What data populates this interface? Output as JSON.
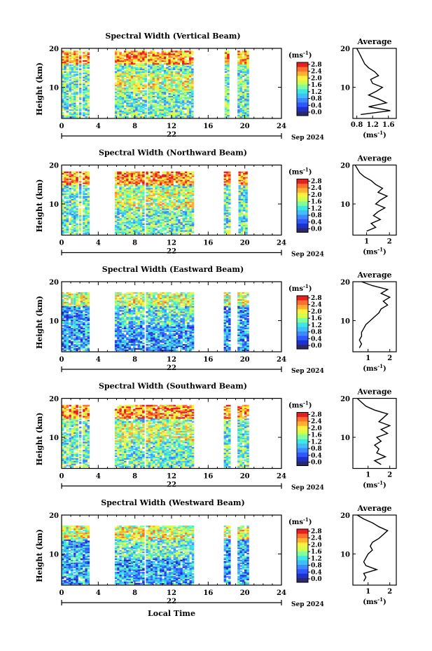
{
  "figure": {
    "xlabel": "Local Time",
    "date_suffix": "Sep 2024"
  },
  "colorbar": {
    "unit": "(ms",
    "unit_exp": "-1",
    "unit_close": ")",
    "ticks": [
      "0.0",
      "0.4",
      "0.8",
      "1.2",
      "1.6",
      "2.0",
      "2.4",
      "2.8"
    ],
    "colors": [
      "#2a2a6a",
      "#1f2fd0",
      "#2f59ff",
      "#3f89ff",
      "#3fbfff",
      "#3fe7df",
      "#7fff9f",
      "#cfff4f",
      "#fff03f",
      "#ffb02f",
      "#ff6f2f",
      "#e62020"
    ]
  },
  "chart_data": [
    {
      "type": "heatmap",
      "title": "Spectral Width (Vertical Beam)",
      "ylabel": "Height (km)",
      "xlim": [
        0,
        24
      ],
      "ylim": [
        2,
        20
      ],
      "xticks": [
        0,
        4,
        8,
        12,
        16,
        20,
        24
      ],
      "yticks": [
        10,
        20
      ],
      "day_label": "22",
      "data_intervals": [
        [
          0.0,
          0.6
        ],
        [
          0.8,
          1.6
        ],
        [
          1.9,
          2.1
        ],
        [
          2.3,
          3.0
        ],
        [
          5.8,
          9.2
        ],
        [
          9.4,
          14.3
        ],
        [
          17.8,
          18.2
        ],
        [
          19.2,
          20.3
        ]
      ],
      "top_km": 19.5,
      "mean_intensity": 0.45,
      "average_profile": {
        "title": "Average",
        "xlabel": "(ms",
        "xlabel_exp": "-1",
        "xlabel_close": ")",
        "xlim": [
          0.7,
          1.8
        ],
        "xticks": [
          "0.8",
          "1.2",
          "1.6"
        ],
        "xtick_values": [
          0.8,
          1.2,
          1.6
        ],
        "ylim": [
          2,
          20
        ],
        "yticks": [
          10,
          20
        ],
        "height_km": [
          3,
          4,
          5,
          6,
          7,
          8,
          9,
          10,
          11,
          12,
          13,
          14,
          15,
          16,
          17,
          18,
          19,
          20
        ],
        "width_ms": [
          0.9,
          1.65,
          1.1,
          1.55,
          1.35,
          1.1,
          1.3,
          1.45,
          1.2,
          1.15,
          1.35,
          1.25,
          1.1,
          1.0,
          0.95,
          0.9,
          0.85,
          0.8
        ]
      }
    },
    {
      "type": "heatmap",
      "title": "Spectral Width (Northward Beam)",
      "ylabel": "Height (km)",
      "xlim": [
        0,
        24
      ],
      "ylim": [
        2,
        20
      ],
      "xticks": [
        0,
        4,
        8,
        12,
        16,
        20,
        24
      ],
      "yticks": [
        10,
        20
      ],
      "day_label": "22",
      "data_intervals": [
        [
          0.0,
          0.6
        ],
        [
          0.8,
          1.6
        ],
        [
          1.9,
          2.1
        ],
        [
          2.3,
          3.0
        ],
        [
          5.8,
          9.0
        ],
        [
          9.2,
          14.3
        ],
        [
          17.7,
          18.3
        ],
        [
          19.3,
          20.3
        ]
      ],
      "top_km": 18.5,
      "mean_intensity": 0.45,
      "average_profile": {
        "title": "Average",
        "xlabel": "(ms",
        "xlabel_exp": "-1",
        "xlabel_close": ")",
        "xlim": [
          0.4,
          2.3
        ],
        "xticks": [
          "1",
          "2"
        ],
        "xtick_values": [
          1,
          2
        ],
        "ylim": [
          2,
          20
        ],
        "yticks": [
          10,
          20
        ],
        "height_km": [
          3,
          4,
          5,
          6,
          7,
          8,
          9,
          10,
          11,
          12,
          13,
          14,
          15,
          16,
          17,
          18,
          19,
          20
        ],
        "width_ms": [
          1.0,
          1.4,
          1.2,
          1.6,
          1.3,
          1.5,
          1.8,
          1.4,
          1.6,
          1.9,
          1.5,
          1.7,
          1.4,
          1.2,
          0.9,
          0.7,
          0.6,
          0.5
        ]
      }
    },
    {
      "type": "heatmap",
      "title": "Spectral Width (Eastward Beam)",
      "ylabel": "Height (km)",
      "xlim": [
        0,
        24
      ],
      "ylim": [
        2,
        20
      ],
      "xticks": [
        0,
        4,
        8,
        12,
        16,
        20,
        24
      ],
      "yticks": [
        10,
        20
      ],
      "day_label": "22",
      "data_intervals": [
        [
          0.0,
          1.1
        ],
        [
          1.3,
          2.1
        ],
        [
          2.3,
          3.0
        ],
        [
          5.8,
          9.0
        ],
        [
          9.2,
          14.3
        ],
        [
          17.7,
          18.4
        ],
        [
          19.2,
          20.3
        ]
      ],
      "top_km": 17.5,
      "mean_intensity": 0.25,
      "average_profile": {
        "title": "Average",
        "xlabel": "(ms",
        "xlabel_exp": "-1",
        "xlabel_close": ")",
        "xlim": [
          0.3,
          2.3
        ],
        "xticks": [
          "1",
          "2"
        ],
        "xtick_values": [
          1,
          2
        ],
        "ylim": [
          2,
          20
        ],
        "yticks": [
          10,
          20
        ],
        "height_km": [
          3,
          4,
          5,
          6,
          7,
          8,
          9,
          10,
          11,
          12,
          13,
          14,
          15,
          16,
          17,
          18,
          19,
          20
        ],
        "width_ms": [
          0.6,
          0.7,
          0.6,
          0.7,
          0.7,
          0.8,
          0.9,
          1.1,
          1.3,
          1.5,
          1.6,
          1.9,
          1.7,
          2.0,
          1.6,
          1.9,
          1.2,
          0.7
        ]
      }
    },
    {
      "type": "heatmap",
      "title": "Spectral Width (Southward Beam)",
      "ylabel": "Height (km)",
      "xlim": [
        0,
        24
      ],
      "ylim": [
        2,
        20
      ],
      "xticks": [
        0,
        4,
        8,
        12,
        16,
        20,
        24
      ],
      "yticks": [
        10,
        20
      ],
      "day_label": "22",
      "data_intervals": [
        [
          0.0,
          0.6
        ],
        [
          0.8,
          1.6
        ],
        [
          1.9,
          2.1
        ],
        [
          2.3,
          3.0
        ],
        [
          5.8,
          9.0
        ],
        [
          9.2,
          14.3
        ],
        [
          17.7,
          18.3
        ],
        [
          19.2,
          20.3
        ]
      ],
      "top_km": 18.5,
      "mean_intensity": 0.45,
      "average_profile": {
        "title": "Average",
        "xlabel": "(ms",
        "xlabel_exp": "-1",
        "xlabel_close": ")",
        "xlim": [
          0.3,
          2.3
        ],
        "xticks": [
          "1",
          "2"
        ],
        "xtick_values": [
          1,
          2
        ],
        "ylim": [
          2,
          20
        ],
        "yticks": [
          10,
          20
        ],
        "height_km": [
          3,
          4,
          5,
          6,
          7,
          8,
          9,
          10,
          11,
          12,
          13,
          14,
          15,
          16,
          17,
          18,
          19,
          20
        ],
        "width_ms": [
          1.6,
          1.3,
          1.8,
          1.4,
          1.5,
          1.3,
          1.6,
          1.4,
          1.9,
          1.6,
          2.0,
          1.5,
          1.7,
          1.9,
          1.3,
          0.9,
          0.7,
          0.5
        ]
      }
    },
    {
      "type": "heatmap",
      "title": "Spectral Width (Westward Beam)",
      "ylabel": "Height (km)",
      "xlim": [
        0,
        24
      ],
      "ylim": [
        2,
        20
      ],
      "xticks": [
        0,
        4,
        8,
        12,
        16,
        20,
        24
      ],
      "yticks": [
        10,
        20
      ],
      "day_label": "22",
      "data_intervals": [
        [
          0.0,
          1.1
        ],
        [
          1.3,
          2.1
        ],
        [
          2.3,
          3.0
        ],
        [
          5.8,
          9.0
        ],
        [
          9.2,
          14.3
        ],
        [
          17.7,
          18.4
        ],
        [
          19.2,
          20.3
        ]
      ],
      "top_km": 17.5,
      "mean_intensity": 0.28,
      "average_profile": {
        "title": "Average",
        "xlabel": "(ms",
        "xlabel_exp": "-1",
        "xlabel_close": ")",
        "xlim": [
          0.3,
          2.3
        ],
        "xticks": [
          "1",
          "2"
        ],
        "xtick_values": [
          1,
          2
        ],
        "ylim": [
          2,
          20
        ],
        "yticks": [
          10,
          20
        ],
        "height_km": [
          3,
          4,
          5,
          6,
          7,
          8,
          9,
          10,
          11,
          12,
          13,
          14,
          15,
          16,
          17,
          18,
          19,
          20
        ],
        "width_ms": [
          0.8,
          0.9,
          0.8,
          1.4,
          0.9,
          0.8,
          0.9,
          1.0,
          1.2,
          1.1,
          1.2,
          1.5,
          1.7,
          1.9,
          1.5,
          1.2,
          0.8,
          0.5
        ]
      }
    }
  ]
}
